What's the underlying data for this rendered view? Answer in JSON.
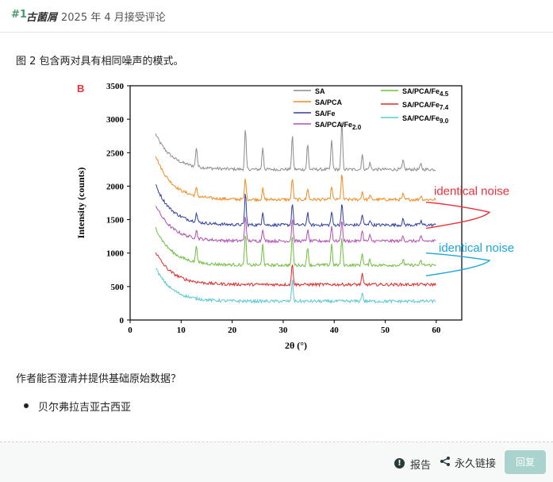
{
  "header": {
    "post_number": "#1",
    "author": "古菌屑",
    "date": "2025 年 4 月接受评论"
  },
  "body": {
    "intro": "图 2 包含两对具有相同噪声的模式。",
    "question": "作者能否澄清并提供基础原始数据？",
    "bullet": "贝尔弗拉吉亚古西亚"
  },
  "footer": {
    "report_label": "报告",
    "permalink_label": "永久链接",
    "reply_label": "回复"
  },
  "icons": {
    "report": "alert-circle-icon",
    "permalink": "share-icon"
  },
  "colors": {
    "accent": "#4a9a6e",
    "reply_button": "#a9d3cc",
    "annotation_red": "#e8313b",
    "annotation_blue": "#1ba7d9"
  },
  "chart_data": {
    "type": "line",
    "panel_label": "B",
    "xlabel": "2θ (°)",
    "ylabel": "Intensity (counts)",
    "xlim": [
      0,
      65
    ],
    "ylim": [
      0,
      3500
    ],
    "xticks": [
      0,
      10,
      20,
      30,
      40,
      50,
      60
    ],
    "yticks": [
      0,
      500,
      1000,
      1500,
      2000,
      2500,
      3000,
      3500
    ],
    "peak_positions": [
      13,
      22.6,
      26,
      31.8,
      34.8,
      39.5,
      41.5,
      45.5,
      47,
      53.5,
      57
    ],
    "series": [
      {
        "name": "SA",
        "color": "#8c8c8c",
        "baseline": 2250,
        "start": 2780,
        "peaks": [
          300,
          600,
          330,
          500,
          380,
          450,
          720,
          220,
          100,
          130,
          80
        ]
      },
      {
        "name": "SA/PCA",
        "color": "#f28a1f",
        "baseline": 1800,
        "start": 2460,
        "peaks": [
          120,
          320,
          160,
          330,
          170,
          200,
          380,
          120,
          60,
          80,
          60
        ]
      },
      {
        "name": "SA/Fe",
        "color": "#2f3ea0",
        "baseline": 1420,
        "start": 2020,
        "peaks": [
          130,
          480,
          200,
          330,
          190,
          200,
          320,
          160,
          80,
          80,
          60
        ]
      },
      {
        "name": "SA/PCA/Fe2.0",
        "color": "#b24fb0",
        "baseline": 1180,
        "start": 1720,
        "peaks": [
          120,
          380,
          190,
          330,
          160,
          220,
          320,
          160,
          80,
          80,
          60
        ]
      },
      {
        "name": "SA/PCA/Fe4.5",
        "color": "#6fbf3f",
        "baseline": 820,
        "start": 1380,
        "peaks": [
          260,
          480,
          310,
          460,
          280,
          320,
          420,
          180,
          80,
          90,
          60
        ]
      },
      {
        "name": "SA/PCA/Fe7.4",
        "color": "#e12a2a",
        "baseline": 530,
        "start": 1020,
        "peaks": [
          0,
          0,
          0,
          330,
          0,
          0,
          0,
          150,
          0,
          0,
          0
        ]
      },
      {
        "name": "SA/PCA/Fe9.0",
        "color": "#58c9d6",
        "baseline": 280,
        "start": 780,
        "peaks": [
          0,
          0,
          0,
          320,
          0,
          0,
          0,
          130,
          0,
          0,
          0
        ]
      }
    ],
    "legend": {
      "placement": "top-inside",
      "entries": [
        {
          "main": "SA/PCA/Fe",
          "sub": "4.5"
        },
        {
          "main": "SA/PCA/Fe",
          "sub": "7.4"
        },
        {
          "main": "SA/PCA/Fe",
          "sub": "9.0"
        },
        {
          "main": "SA/PCA/Fe",
          "sub": "2.0"
        }
      ]
    },
    "annotations": [
      "identical noise",
      "identical noise"
    ]
  }
}
